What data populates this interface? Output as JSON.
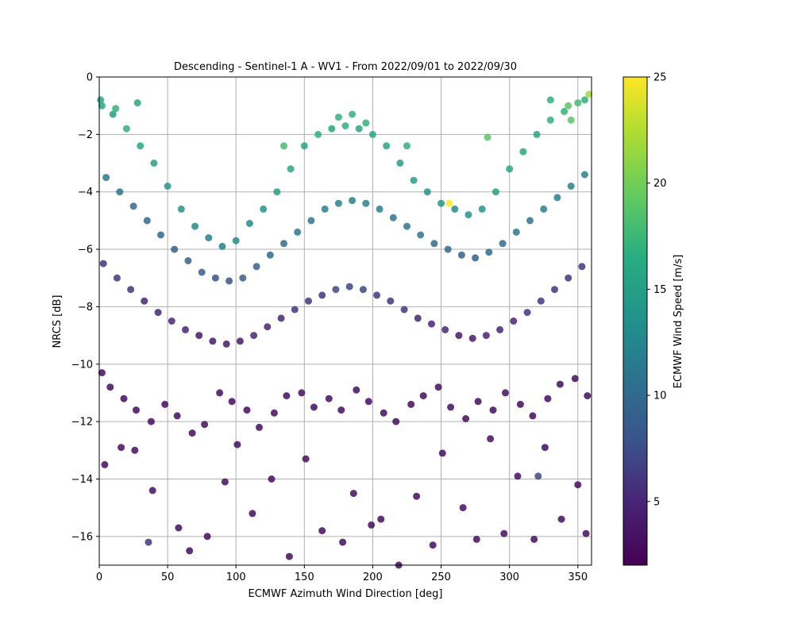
{
  "chart_data": {
    "type": "scatter",
    "title": "Descending - Sentinel-1 A - WV1 - From 2022/09/01 to 2022/09/30",
    "xlabel": "ECMWF Azimuth Wind Direction [deg]",
    "ylabel": "NRCS [dB]",
    "xlim": [
      0,
      360
    ],
    "ylim": [
      -17,
      0
    ],
    "xticks": [
      0,
      50,
      100,
      150,
      200,
      250,
      300,
      350
    ],
    "yticks": [
      0,
      -2,
      -4,
      -6,
      -8,
      -10,
      -12,
      -14,
      -16
    ],
    "grid": true,
    "colormap": "viridis",
    "colorbar": {
      "label": "ECMWF Wind Speed [m/s]",
      "range": [
        2,
        25
      ],
      "ticks": [
        5,
        10,
        15,
        20,
        25
      ]
    },
    "series": [
      {
        "x": [
          2,
          10,
          20,
          30,
          40,
          50,
          60,
          70,
          80,
          90,
          100,
          110,
          120,
          130,
          140,
          150,
          160,
          170,
          180,
          190,
          200,
          210,
          220,
          230,
          240,
          250,
          260,
          270,
          280,
          290,
          300,
          310,
          320,
          330,
          340,
          350,
          358,
          1,
          12,
          28,
          175,
          185,
          195,
          343,
          355,
          256,
          284,
          135,
          225,
          330,
          345
        ],
        "y": [
          -1.0,
          -1.3,
          -1.8,
          -2.4,
          -3.0,
          -3.8,
          -4.6,
          -5.2,
          -5.6,
          -5.9,
          -5.7,
          -5.1,
          -4.6,
          -4.0,
          -3.2,
          -2.4,
          -2.0,
          -1.8,
          -1.7,
          -1.8,
          -2.0,
          -2.4,
          -3.0,
          -3.6,
          -4.0,
          -4.4,
          -4.6,
          -4.8,
          -4.6,
          -4.0,
          -3.2,
          -2.6,
          -2.0,
          -1.5,
          -1.2,
          -0.9,
          -0.6,
          -0.8,
          -1.1,
          -0.9,
          -1.4,
          -1.3,
          -1.6,
          -1.0,
          -0.8,
          -4.4,
          -2.1,
          -2.4,
          -2.4,
          -0.8,
          -1.5
        ],
        "speed": [
          16,
          15,
          17,
          16,
          15,
          14,
          14,
          13,
          12,
          12,
          13,
          13,
          14,
          15,
          16,
          16,
          17,
          16,
          17,
          16,
          16,
          16,
          15,
          15,
          14,
          14,
          13,
          14,
          14,
          15,
          16,
          16,
          16,
          17,
          17,
          18,
          22,
          16,
          17,
          16,
          17,
          17,
          17,
          19,
          17,
          25,
          19,
          18,
          17,
          17,
          19
        ]
      },
      {
        "x": [
          5,
          15,
          25,
          35,
          45,
          55,
          65,
          75,
          85,
          95,
          105,
          115,
          125,
          135,
          145,
          155,
          165,
          175,
          185,
          195,
          205,
          215,
          225,
          235,
          245,
          255,
          265,
          275,
          285,
          295,
          305,
          315,
          325,
          335,
          345,
          355
        ],
        "y": [
          -3.5,
          -4.0,
          -4.5,
          -5.0,
          -5.5,
          -6.0,
          -6.4,
          -6.8,
          -7.0,
          -7.1,
          -7.0,
          -6.6,
          -6.2,
          -5.8,
          -5.4,
          -5.0,
          -4.6,
          -4.4,
          -4.3,
          -4.4,
          -4.6,
          -4.9,
          -5.2,
          -5.5,
          -5.8,
          -6.0,
          -6.2,
          -6.3,
          -6.1,
          -5.8,
          -5.4,
          -5.0,
          -4.6,
          -4.2,
          -3.8,
          -3.4
        ],
        "speed": [
          11,
          11,
          10,
          10,
          10,
          9,
          9,
          9,
          8,
          8,
          9,
          9,
          10,
          10,
          11,
          11,
          12,
          12,
          12,
          12,
          12,
          11,
          11,
          11,
          10,
          10,
          9,
          9,
          10,
          10,
          11,
          11,
          12,
          12,
          12,
          12
        ]
      },
      {
        "x": [
          3,
          13,
          23,
          33,
          43,
          53,
          63,
          73,
          83,
          93,
          103,
          113,
          123,
          133,
          143,
          153,
          163,
          173,
          183,
          193,
          203,
          213,
          223,
          233,
          243,
          253,
          263,
          273,
          283,
          293,
          303,
          313,
          323,
          333,
          343,
          353
        ],
        "y": [
          -6.5,
          -7.0,
          -7.4,
          -7.8,
          -8.2,
          -8.5,
          -8.8,
          -9.0,
          -9.2,
          -9.3,
          -9.2,
          -9.0,
          -8.7,
          -8.4,
          -8.1,
          -7.8,
          -7.6,
          -7.4,
          -7.3,
          -7.4,
          -7.6,
          -7.8,
          -8.1,
          -8.4,
          -8.6,
          -8.8,
          -9.0,
          -9.1,
          -9.0,
          -8.8,
          -8.5,
          -8.2,
          -7.8,
          -7.4,
          -7.0,
          -6.6
        ],
        "speed": [
          6,
          6,
          6,
          5,
          5,
          5,
          5,
          4,
          4,
          4,
          4,
          5,
          5,
          5,
          6,
          6,
          6,
          7,
          7,
          7,
          6,
          6,
          6,
          5,
          5,
          5,
          4,
          4,
          5,
          5,
          5,
          6,
          6,
          6,
          6,
          6
        ]
      },
      {
        "x": [
          2,
          8,
          18,
          27,
          38,
          48,
          57,
          68,
          77,
          88,
          97,
          108,
          117,
          128,
          137,
          148,
          157,
          168,
          177,
          188,
          197,
          208,
          217,
          228,
          237,
          248,
          257,
          268,
          277,
          288,
          297,
          308,
          317,
          328,
          337,
          348,
          357
        ],
        "y": [
          -10.3,
          -10.8,
          -11.2,
          -11.6,
          -12.0,
          -11.4,
          -11.8,
          -12.4,
          -12.1,
          -11.0,
          -11.3,
          -11.6,
          -12.2,
          -11.7,
          -11.1,
          -11.0,
          -11.5,
          -11.2,
          -11.6,
          -10.9,
          -11.3,
          -11.7,
          -12.0,
          -11.4,
          -11.1,
          -10.8,
          -11.5,
          -11.9,
          -11.3,
          -11.6,
          -11.0,
          -11.4,
          -11.8,
          -11.2,
          -10.7,
          -10.5,
          -11.1
        ],
        "speed": [
          3,
          3,
          3,
          3,
          3,
          3,
          3,
          3,
          3,
          3,
          3,
          3,
          3,
          3,
          3,
          3,
          3,
          3,
          3,
          3,
          3,
          3,
          3,
          3,
          3,
          3,
          3,
          3,
          3,
          3,
          3,
          3,
          3,
          3,
          3,
          3,
          3
        ]
      },
      {
        "x": [
          4,
          16,
          26,
          39,
          58,
          66,
          79,
          92,
          101,
          112,
          126,
          139,
          151,
          163,
          178,
          186,
          199,
          206,
          219,
          232,
          244,
          251,
          266,
          276,
          286,
          296,
          306,
          318,
          326,
          338,
          350,
          356,
          36,
          321
        ],
        "y": [
          -13.5,
          -12.9,
          -13.0,
          -14.4,
          -15.7,
          -16.5,
          -16.0,
          -14.1,
          -12.8,
          -15.2,
          -14.0,
          -16.7,
          -13.3,
          -15.8,
          -16.2,
          -14.5,
          -15.6,
          -15.4,
          -17.0,
          -14.6,
          -16.3,
          -13.1,
          -15.0,
          -16.1,
          -12.6,
          -15.9,
          -13.9,
          -16.1,
          -12.9,
          -15.4,
          -14.2,
          -15.9,
          -16.2,
          -13.9
        ],
        "speed": [
          3,
          3,
          3,
          3,
          3,
          3,
          3,
          3,
          3,
          3,
          3,
          3,
          3,
          3,
          3,
          3,
          3,
          3,
          3,
          3,
          3,
          3,
          3,
          3,
          3,
          3,
          3,
          3,
          3,
          3,
          3,
          3,
          6,
          7
        ]
      }
    ]
  }
}
